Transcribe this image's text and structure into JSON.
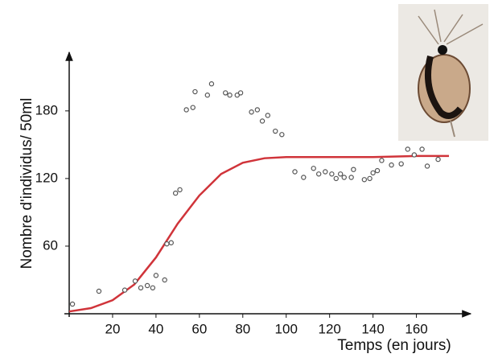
{
  "chart_data": {
    "type": "scatter",
    "x_label": "Temps (en jours)",
    "y_label": "Nombre d'individus/ 50ml",
    "xlim": [
      0,
      185
    ],
    "ylim": [
      0,
      232
    ],
    "xticks": [
      20,
      40,
      60,
      80,
      100,
      120,
      140,
      160
    ],
    "yticks": [
      60,
      120,
      180
    ],
    "points": {
      "color": "#555555",
      "x": [
        1.5,
        13.7,
        25.6,
        30.4,
        33,
        36,
        38.5,
        40,
        44,
        45,
        47,
        49,
        51,
        54,
        57,
        58,
        63.7,
        65.6,
        72,
        74,
        77.4,
        79,
        84,
        86.7,
        89,
        91.5,
        95,
        98,
        104,
        108,
        112.6,
        115,
        118,
        121,
        123,
        125,
        126.7,
        130,
        131,
        136,
        138.5,
        140,
        142,
        144,
        148.5,
        153,
        156,
        159,
        162.6,
        165,
        170
      ],
      "y": [
        8.6,
        20,
        21,
        29,
        23,
        25,
        23,
        34,
        30,
        62,
        63,
        107,
        110,
        181,
        183,
        197,
        194,
        204,
        196,
        194,
        194,
        196,
        179,
        181,
        171,
        176,
        162,
        159,
        126,
        121,
        129,
        124,
        126,
        124,
        120,
        124,
        121,
        121,
        128,
        119,
        120,
        125,
        127,
        136,
        132,
        133,
        146,
        141,
        146,
        131,
        137
      ]
    },
    "curve": {
      "color": "#d0343a",
      "x": [
        0,
        10,
        20,
        30,
        40,
        50,
        60,
        70,
        80,
        90,
        100,
        120,
        140,
        160,
        175
      ],
      "values": [
        2,
        5,
        12,
        26,
        50,
        80,
        105,
        124,
        134,
        138,
        139,
        139,
        139,
        140,
        140
      ]
    }
  }
}
